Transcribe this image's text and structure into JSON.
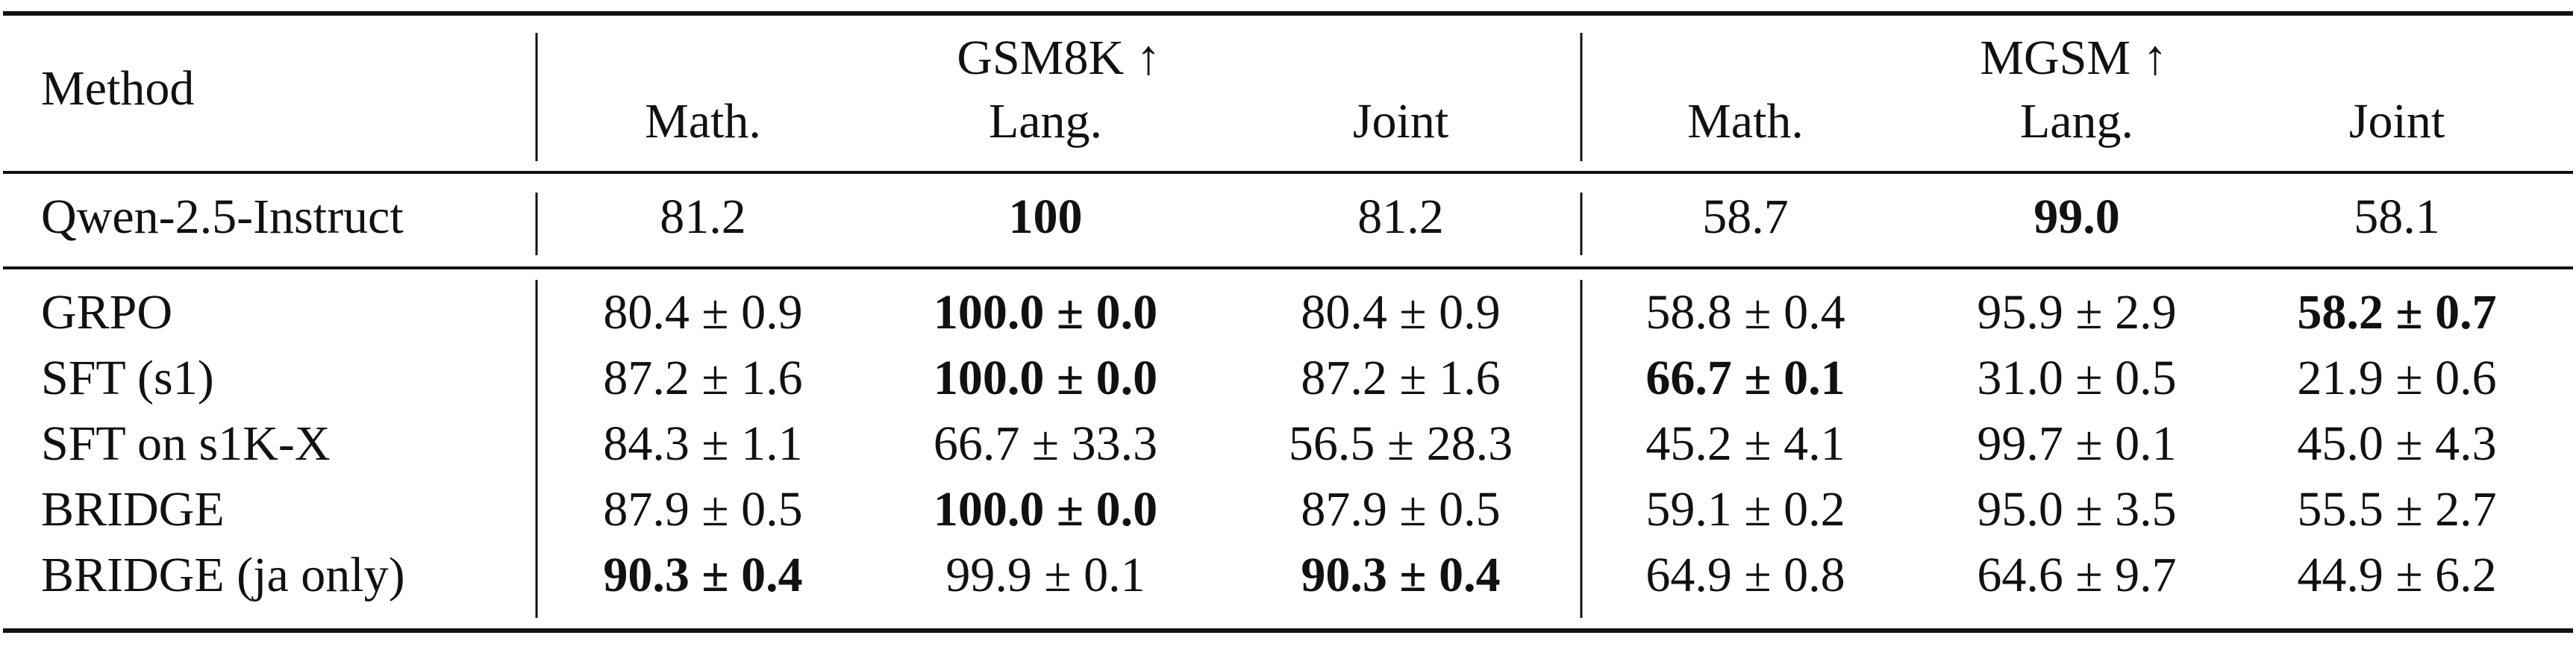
{
  "header": {
    "method": "Method",
    "groups": [
      {
        "label": "GSM8K ↑",
        "columns": [
          "Math.",
          "Lang.",
          "Joint"
        ]
      },
      {
        "label": "MGSM ↑",
        "columns": [
          "Math.",
          "Lang.",
          "Joint"
        ]
      }
    ]
  },
  "table": {
    "rows": [
      {
        "method": "Qwen-2.5-Instruct",
        "cells": [
          {
            "text": "81.2"
          },
          {
            "text": "100",
            "bold": true
          },
          {
            "text": "81.2"
          },
          {
            "text": "58.7"
          },
          {
            "text": "99.0",
            "bold": true
          },
          {
            "text": "58.1"
          }
        ]
      },
      {
        "method": "GRPO",
        "cells": [
          {
            "text": "80.4 ± 0.9"
          },
          {
            "text": "100.0 ± 0.0",
            "bold": true
          },
          {
            "text": "80.4 ± 0.9"
          },
          {
            "text": "58.8 ± 0.4"
          },
          {
            "text": "95.9 ± 2.9"
          },
          {
            "text": "58.2 ± 0.7",
            "bold": true
          }
        ]
      },
      {
        "method": "SFT (s1)",
        "cells": [
          {
            "text": "87.2 ± 1.6"
          },
          {
            "text": "100.0 ± 0.0",
            "bold": true
          },
          {
            "text": "87.2 ± 1.6"
          },
          {
            "text": "66.7 ± 0.1",
            "bold": true
          },
          {
            "text": "31.0 ± 0.5"
          },
          {
            "text": "21.9 ± 0.6"
          }
        ]
      },
      {
        "method": "SFT on s1K-X",
        "cells": [
          {
            "text": "84.3 ± 1.1"
          },
          {
            "text": "66.7 ± 33.3"
          },
          {
            "text": "56.5 ± 28.3"
          },
          {
            "text": "45.2 ± 4.1"
          },
          {
            "text": "99.7 ± 0.1"
          },
          {
            "text": "45.0 ± 4.3"
          }
        ]
      },
      {
        "method": "BRIDGE",
        "cells": [
          {
            "text": "87.9 ± 0.5"
          },
          {
            "text": "100.0 ± 0.0",
            "bold": true
          },
          {
            "text": "87.9 ± 0.5"
          },
          {
            "text": "59.1 ± 0.2"
          },
          {
            "text": "95.0 ± 3.5"
          },
          {
            "text": "55.5 ± 2.7"
          }
        ]
      },
      {
        "method": "BRIDGE (ja only)",
        "cells": [
          {
            "text": "90.3 ± 0.4",
            "bold": true
          },
          {
            "text": "99.9 ± 0.1"
          },
          {
            "text": "90.3 ± 0.4",
            "bold": true
          },
          {
            "text": "64.9 ± 0.8"
          },
          {
            "text": "64.6 ± 9.7"
          },
          {
            "text": "44.9 ± 6.2"
          }
        ]
      }
    ]
  }
}
